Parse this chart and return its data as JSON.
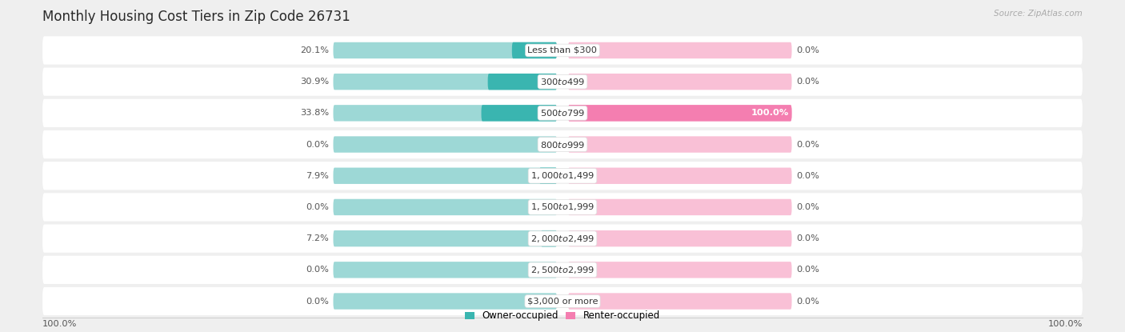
{
  "title": "Monthly Housing Cost Tiers in Zip Code 26731",
  "source": "Source: ZipAtlas.com",
  "categories": [
    "Less than $300",
    "$300 to $499",
    "$500 to $799",
    "$800 to $999",
    "$1,000 to $1,499",
    "$1,500 to $1,999",
    "$2,000 to $2,499",
    "$2,500 to $2,999",
    "$3,000 or more"
  ],
  "owner_values": [
    20.1,
    30.9,
    33.8,
    0.0,
    7.9,
    0.0,
    7.2,
    0.0,
    0.0
  ],
  "renter_values": [
    0.0,
    0.0,
    100.0,
    0.0,
    0.0,
    0.0,
    0.0,
    0.0,
    0.0
  ],
  "owner_color": "#3ab5b0",
  "owner_color_light": "#9dd8d6",
  "renter_color": "#f47eb0",
  "renter_color_light": "#f9c0d6",
  "bg_color": "#efefef",
  "bottom_left_label": "100.0%",
  "bottom_right_label": "100.0%",
  "legend_owner": "Owner-occupied",
  "legend_renter": "Renter-occupied"
}
